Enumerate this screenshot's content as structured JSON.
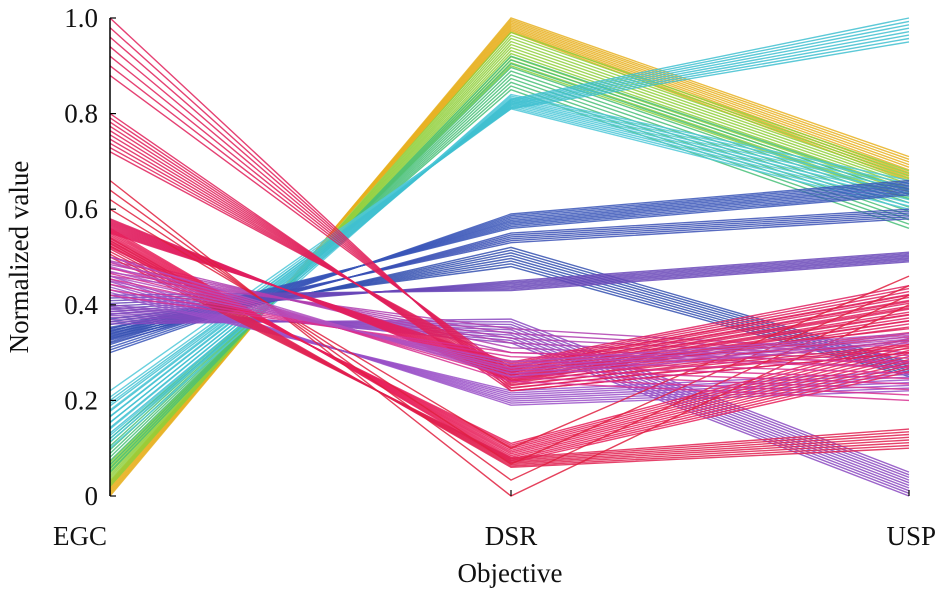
{
  "chart_data": {
    "type": "line",
    "subtype": "parallel-coordinates",
    "title": "",
    "xlabel": "Objective",
    "ylabel": "Normalized value",
    "categories": [
      "EGC",
      "DSR",
      "USP"
    ],
    "ylim": [
      0,
      1
    ],
    "yticks": [
      0,
      0.2,
      0.4,
      0.6,
      0.8,
      1.0
    ],
    "ytick_labels": [
      "0",
      "0.2",
      "0.4",
      "0.6",
      "0.8",
      "1.0"
    ],
    "grid": false,
    "legend": "none",
    "bundles": [
      {
        "name": "",
        "color": "#e8b020",
        "start": [
          0.0,
          1.0,
          0.71
        ],
        "end": [
          0.03,
          0.97,
          0.66
        ],
        "lines": 10
      },
      {
        "name": "",
        "color": "#8fcf3a",
        "start": [
          0.02,
          0.97,
          0.68
        ],
        "end": [
          0.07,
          0.9,
          0.62
        ],
        "lines": 12
      },
      {
        "name": "",
        "color": "#48c078",
        "start": [
          0.05,
          0.92,
          0.64
        ],
        "end": [
          0.12,
          0.85,
          0.56
        ],
        "lines": 10
      },
      {
        "name": "",
        "color": "#4fc8d8",
        "start": [
          0.1,
          0.84,
          0.66
        ],
        "end": [
          0.22,
          0.81,
          0.6
        ],
        "lines": 10
      },
      {
        "name": "",
        "color": "#40c0d0",
        "start": [
          0.12,
          0.83,
          1.0
        ],
        "end": [
          0.2,
          0.81,
          0.95
        ],
        "lines": 8
      },
      {
        "name": "",
        "color": "#3a56b8",
        "start": [
          0.3,
          0.59,
          0.66
        ],
        "end": [
          0.35,
          0.56,
          0.63
        ],
        "lines": 10
      },
      {
        "name": "",
        "color": "#3a50b5",
        "start": [
          0.32,
          0.55,
          0.6
        ],
        "end": [
          0.35,
          0.53,
          0.58
        ],
        "lines": 6
      },
      {
        "name": "",
        "color": "#3450b0",
        "start": [
          0.33,
          0.52,
          0.28
        ],
        "end": [
          0.37,
          0.48,
          0.25
        ],
        "lines": 8
      },
      {
        "name": "",
        "color": "#6a48b8",
        "start": [
          0.38,
          0.45,
          0.51
        ],
        "end": [
          0.42,
          0.43,
          0.49
        ],
        "lines": 8
      },
      {
        "name": "",
        "color": "#8a48c0",
        "start": [
          0.36,
          0.37,
          0.05
        ],
        "end": [
          0.4,
          0.32,
          0.0
        ],
        "lines": 10
      },
      {
        "name": "",
        "color": "#9a50c8",
        "start": [
          0.42,
          0.22,
          0.26
        ],
        "end": [
          0.46,
          0.19,
          0.22
        ],
        "lines": 8
      },
      {
        "name": "",
        "color": "#b040b0",
        "start": [
          0.46,
          0.35,
          0.3
        ],
        "end": [
          0.5,
          0.3,
          0.27
        ],
        "lines": 6
      },
      {
        "name": "",
        "color": "#e02060",
        "start": [
          0.55,
          0.28,
          0.44
        ],
        "end": [
          0.58,
          0.24,
          0.36
        ],
        "lines": 14
      },
      {
        "name": "",
        "color": "#e8205a",
        "start": [
          0.52,
          0.11,
          0.33
        ],
        "end": [
          0.56,
          0.07,
          0.26
        ],
        "lines": 12
      },
      {
        "name": "",
        "color": "#e02050",
        "start": [
          0.5,
          0.08,
          0.14
        ],
        "end": [
          0.54,
          0.06,
          0.1
        ],
        "lines": 8
      },
      {
        "name": "",
        "color": "#e0205a",
        "start": [
          0.72,
          0.27,
          0.42
        ],
        "end": [
          0.8,
          0.22,
          0.3
        ],
        "lines": 10
      },
      {
        "name": "",
        "color": "#e0205a",
        "start": [
          0.88,
          0.26,
          0.35
        ],
        "end": [
          1.0,
          0.22,
          0.3
        ],
        "lines": 7
      },
      {
        "name": "",
        "color": "#e02040",
        "start": [
          0.6,
          0.1,
          0.46
        ],
        "end": [
          0.66,
          0.0,
          0.4
        ],
        "lines": 4
      },
      {
        "name": "",
        "color": "#d83090",
        "start": [
          0.42,
          0.3,
          0.28
        ],
        "end": [
          0.5,
          0.24,
          0.2
        ],
        "lines": 8
      },
      {
        "name": "",
        "color": "#b050c0",
        "start": [
          0.45,
          0.28,
          0.34
        ],
        "end": [
          0.5,
          0.25,
          0.32
        ],
        "lines": 6
      }
    ]
  }
}
